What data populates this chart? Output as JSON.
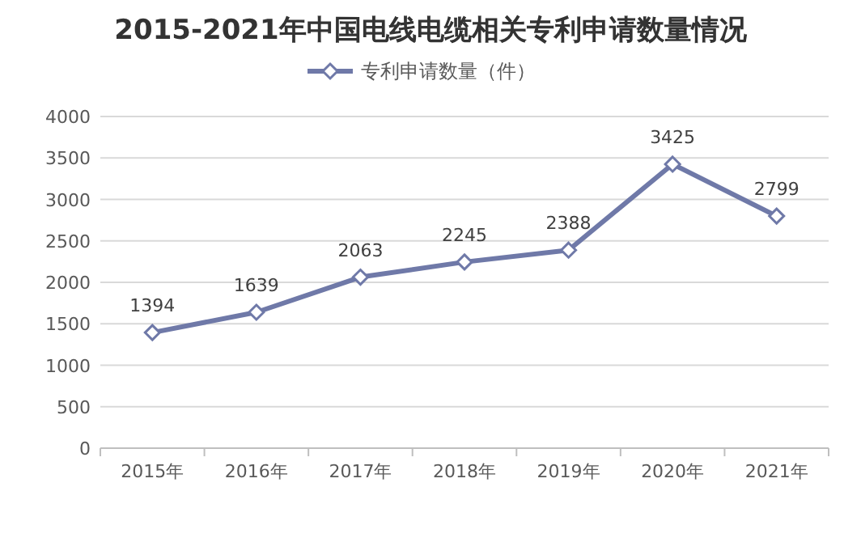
{
  "chart_data": {
    "type": "line",
    "title": "2015-2021年中国电线电缆相关专利申请数量情况",
    "categories": [
      "2015年",
      "2016年",
      "2017年",
      "2018年",
      "2019年",
      "2020年",
      "2021年"
    ],
    "series": [
      {
        "name": "专利申请数量（件）",
        "color": "#6f79a8",
        "values": [
          1394,
          1639,
          2063,
          2245,
          2388,
          3425,
          2799
        ]
      }
    ],
    "ylim": [
      0,
      4000
    ],
    "yticks": [
      0,
      500,
      1000,
      1500,
      2000,
      2500,
      3000,
      3500,
      4000
    ],
    "grid": "y",
    "legend": "top",
    "marker": "diamond",
    "data_labels": true
  }
}
